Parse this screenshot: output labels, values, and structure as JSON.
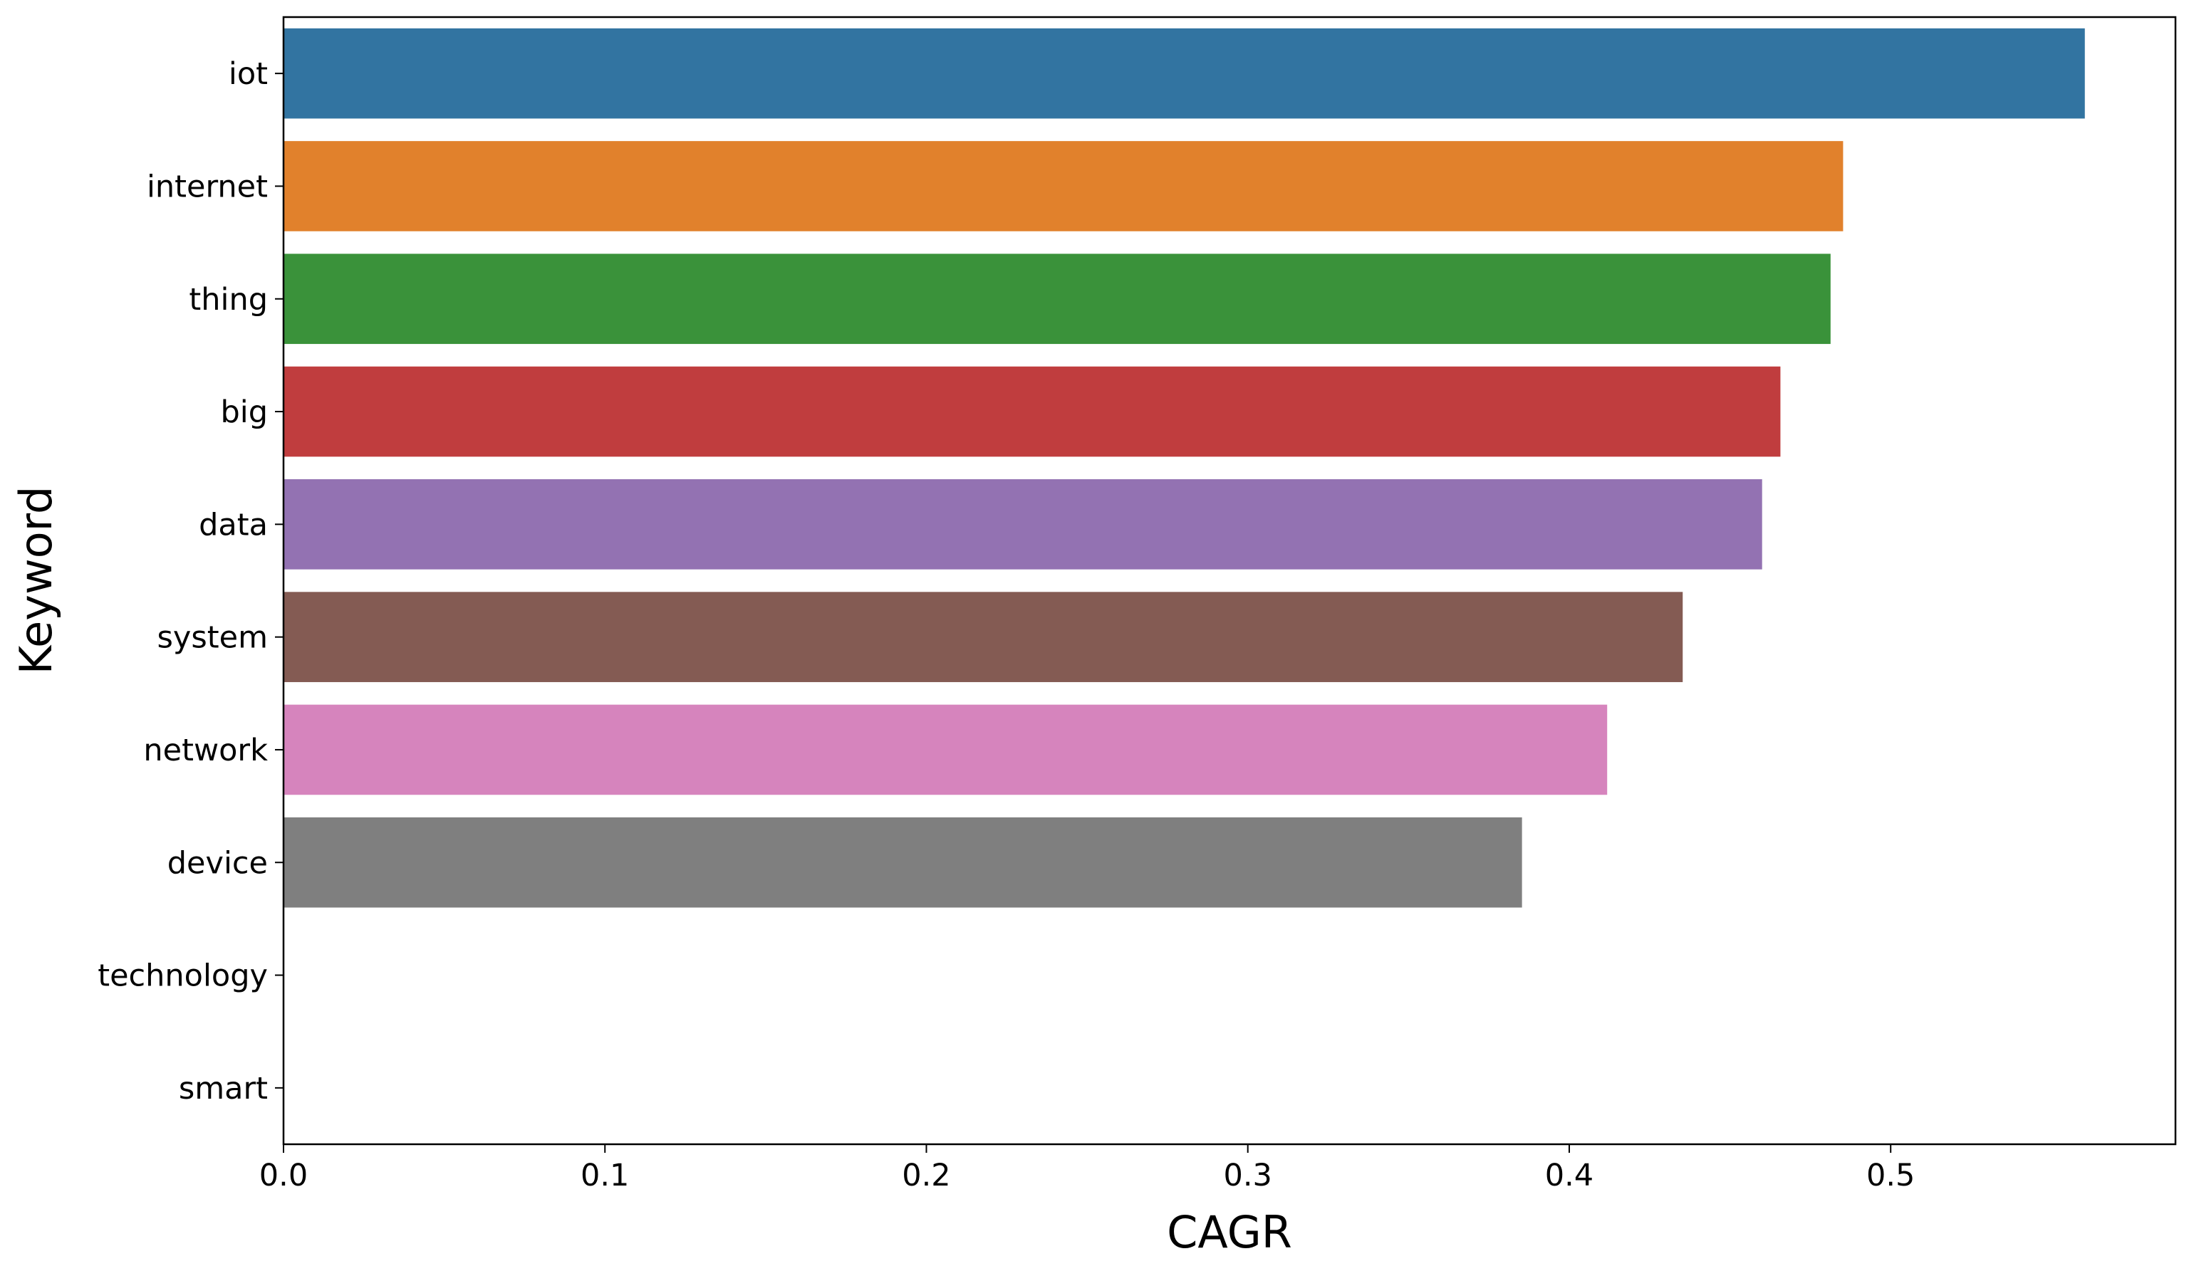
{
  "chart_data": {
    "type": "barh",
    "xlabel": "CAGR",
    "ylabel": "Keyword",
    "categories": [
      "iot",
      "internet",
      "thing",
      "big",
      "data",
      "system",
      "network",
      "device",
      "technology",
      "smart"
    ],
    "values": [
      0.5604,
      0.4852,
      0.4813,
      0.4657,
      0.46,
      0.4353,
      0.4118,
      0.3853,
      0,
      0
    ],
    "colors": [
      "#3274a1",
      "#e1812c",
      "#3a923a",
      "#c03d3e",
      "#9372b2",
      "#845b53",
      "#d684bd",
      "#7f7f7f",
      "#a9aa35",
      "#2eb7c9"
    ],
    "xlim": [
      0,
      0.5886
    ],
    "xticks": [
      {
        "value": 0,
        "label": "0.0"
      },
      0.1,
      0.2,
      0.3,
      0.4,
      0.5
    ]
  }
}
